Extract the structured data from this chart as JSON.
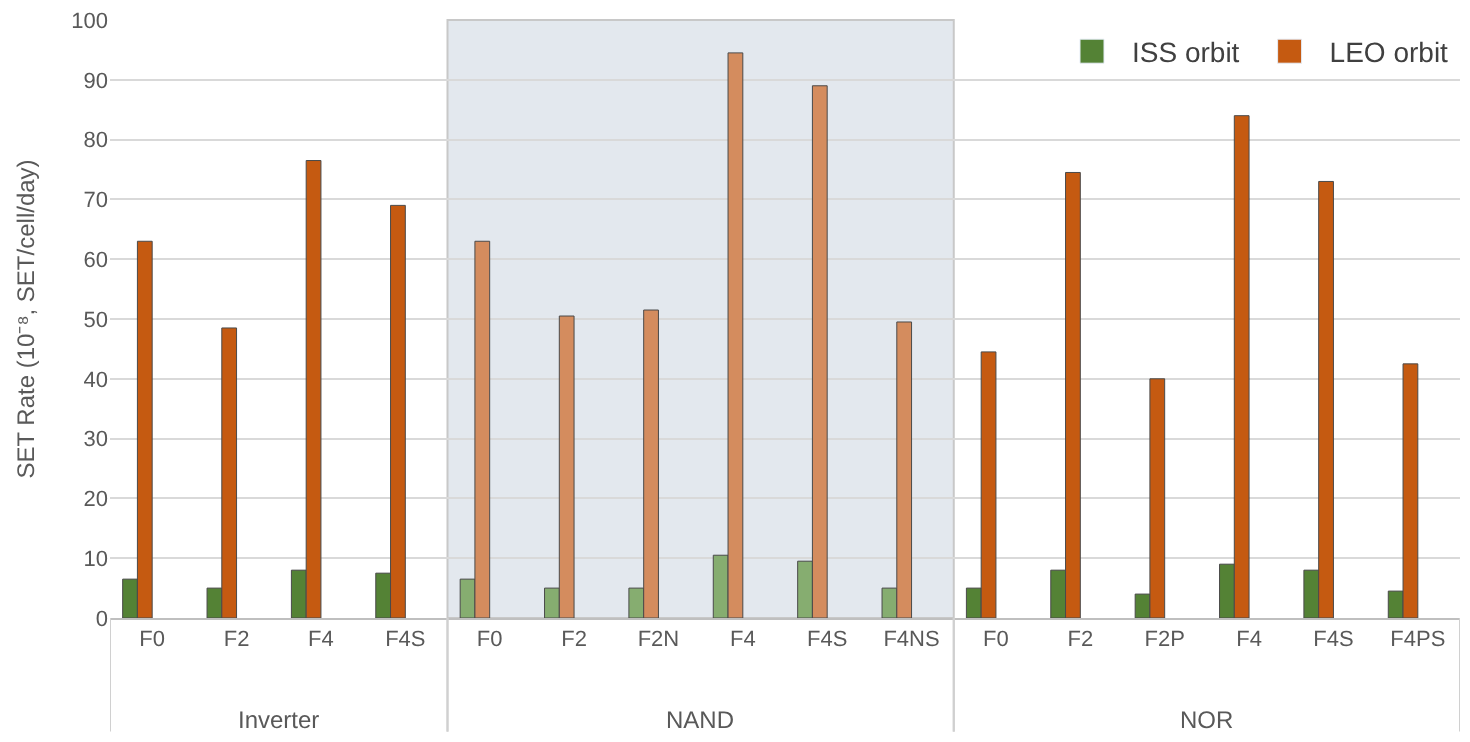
{
  "chart_data": {
    "type": "bar",
    "ylabel": "SET Rate (10⁻⁸, SET/cell/day)",
    "categories": [
      "F0",
      "F2",
      "F4",
      "F4S",
      "F0",
      "F2",
      "F2N",
      "F4",
      "F4S",
      "F4NS",
      "F0",
      "F2",
      "F2P",
      "F4",
      "F4S",
      "F4PS"
    ],
    "series": [
      {
        "name": "ISS orbit",
        "color": "#548235",
        "colors": [
          "#548235",
          "#548235",
          "#548235",
          "#548235",
          "#86ad70",
          "#86ad70",
          "#86ad70",
          "#86ad70",
          "#86ad70",
          "#86ad70",
          "#548235",
          "#548235",
          "#548235",
          "#548235",
          "#548235",
          "#548235"
        ],
        "values": [
          6.5,
          5,
          8,
          7.5,
          6.5,
          5,
          5,
          10.5,
          9.5,
          5,
          5,
          8,
          4,
          9,
          8,
          4.5
        ]
      },
      {
        "name": "LEO orbit",
        "color": "#c55a11",
        "colors": [
          "#c55a11",
          "#c55a11",
          "#c55a11",
          "#c55a11",
          "#d48c5e",
          "#d48c5e",
          "#d48c5e",
          "#d48c5e",
          "#d48c5e",
          "#d48c5e",
          "#c55a11",
          "#c55a11",
          "#c55a11",
          "#c55a11",
          "#c55a11",
          "#c55a11"
        ],
        "values": [
          63,
          48.5,
          76.5,
          69,
          63,
          50.5,
          51.5,
          94.5,
          89,
          49.5,
          44.5,
          74.5,
          40,
          84,
          73,
          42.5
        ]
      }
    ],
    "annotations": [
      "Inverter",
      "NAND",
      "NOR"
    ],
    "ylim": [
      0,
      100
    ],
    "yticks": [
      0,
      10,
      20,
      30,
      40,
      50,
      60,
      70,
      80,
      90,
      100
    ],
    "grid": "y",
    "legend": "top right"
  }
}
